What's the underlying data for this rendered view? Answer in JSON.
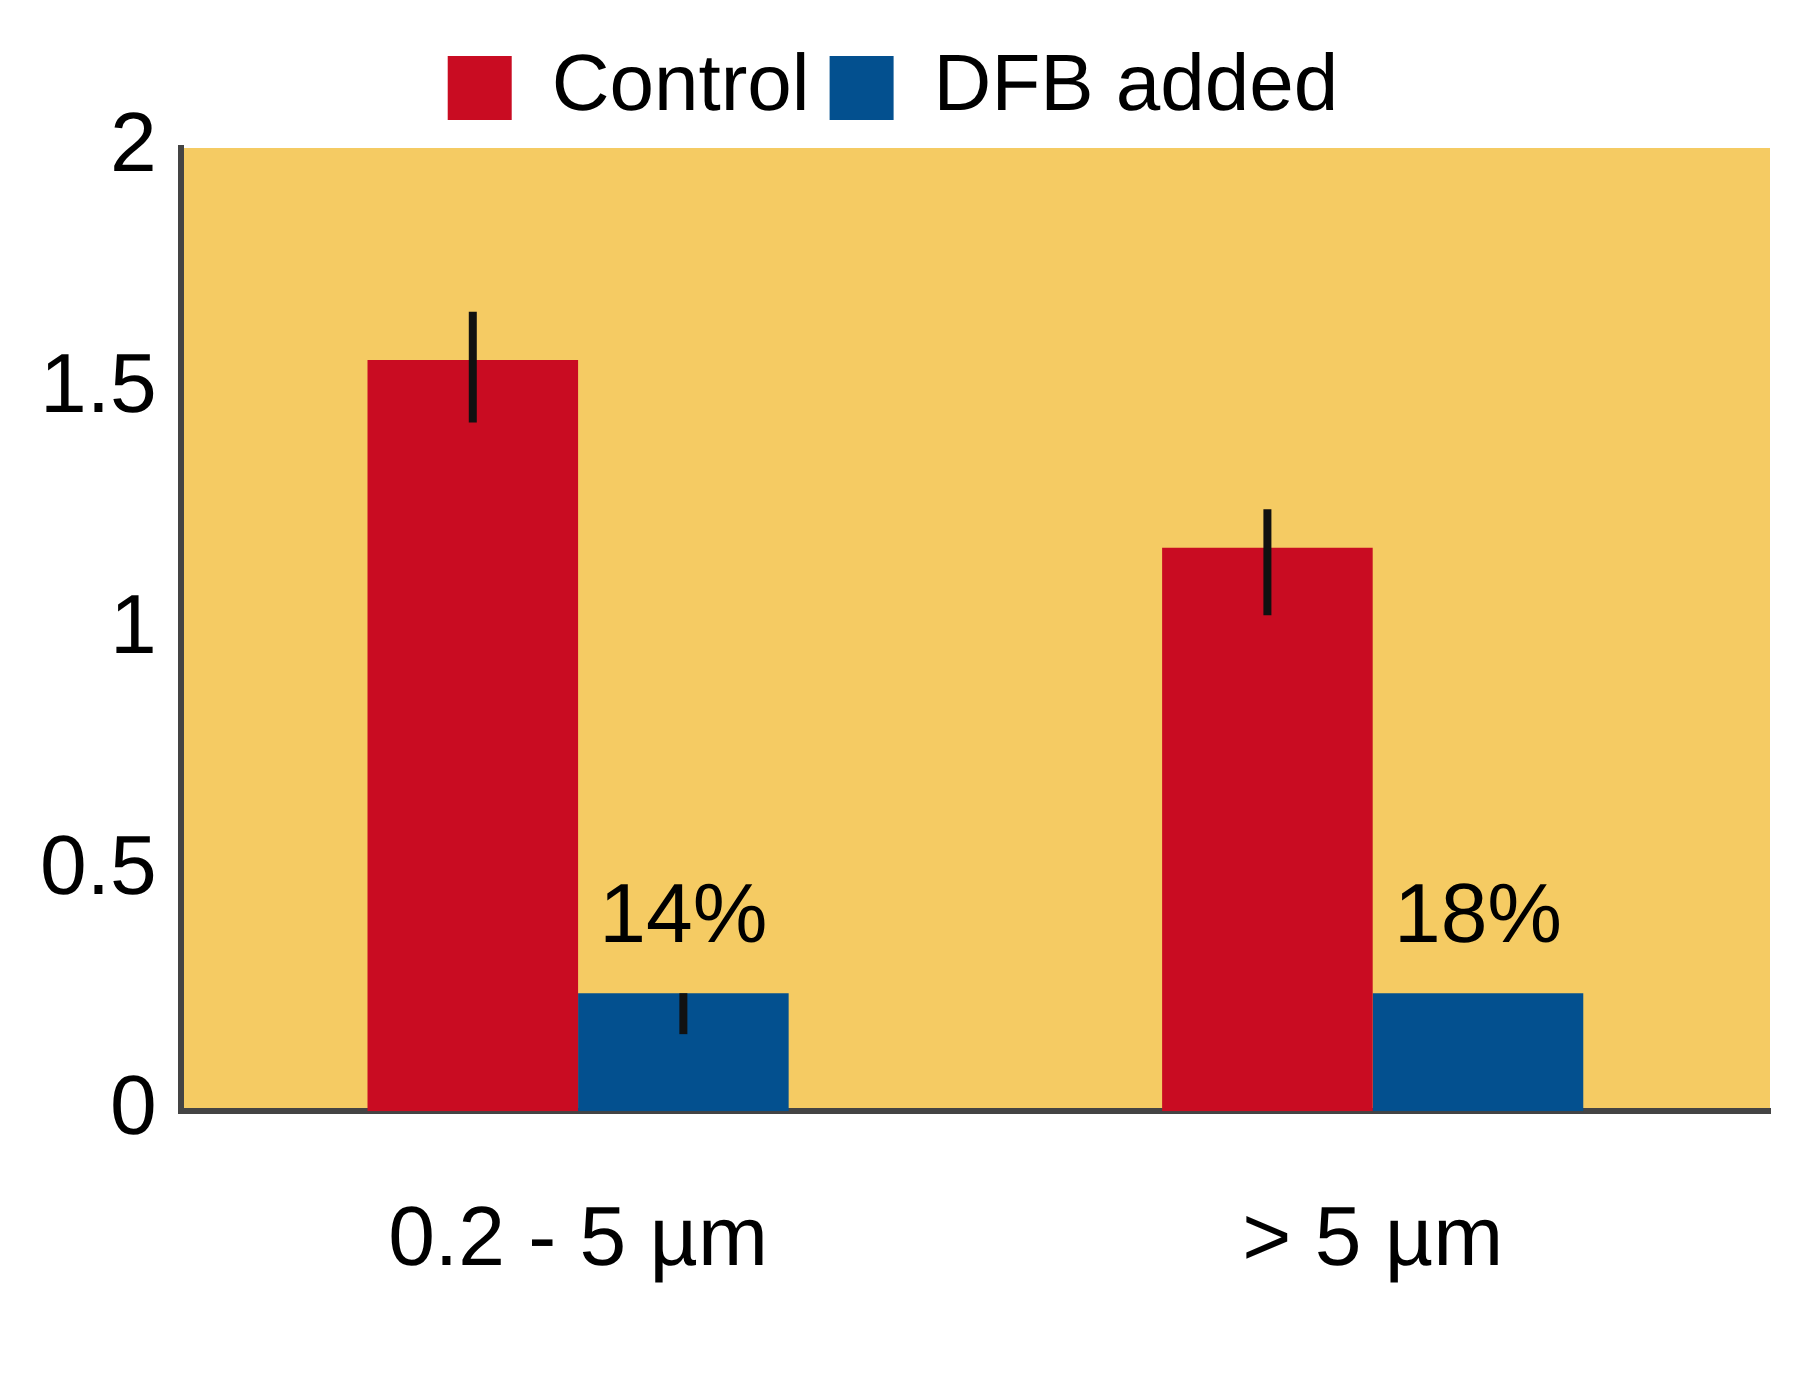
{
  "chart_data": {
    "type": "bar",
    "categories": [
      "0.2 - 5 µm",
      "> 5 µm"
    ],
    "series": [
      {
        "name": "Control",
        "color": "#c90c22",
        "values": [
          1.56,
          1.17
        ],
        "errors": [
          [
            1.43,
            1.66
          ],
          [
            1.03,
            1.25
          ]
        ]
      },
      {
        "name": "DFB added",
        "color": "#03508f",
        "values": [
          0.245,
          0.245
        ],
        "errors": [
          [
            0.16,
            0.245
          ],
          null
        ]
      }
    ],
    "ylim": [
      0,
      2
    ],
    "yticks": [
      0,
      0.5,
      1,
      1.5,
      2
    ],
    "grid": false,
    "legend": "top",
    "annotations": [
      {
        "text": "14%",
        "x": "0.2 - 5 µm",
        "y": 0.245
      },
      {
        "text": "18%",
        "x": "> 5 µm",
        "y": 0.245
      }
    ]
  }
}
